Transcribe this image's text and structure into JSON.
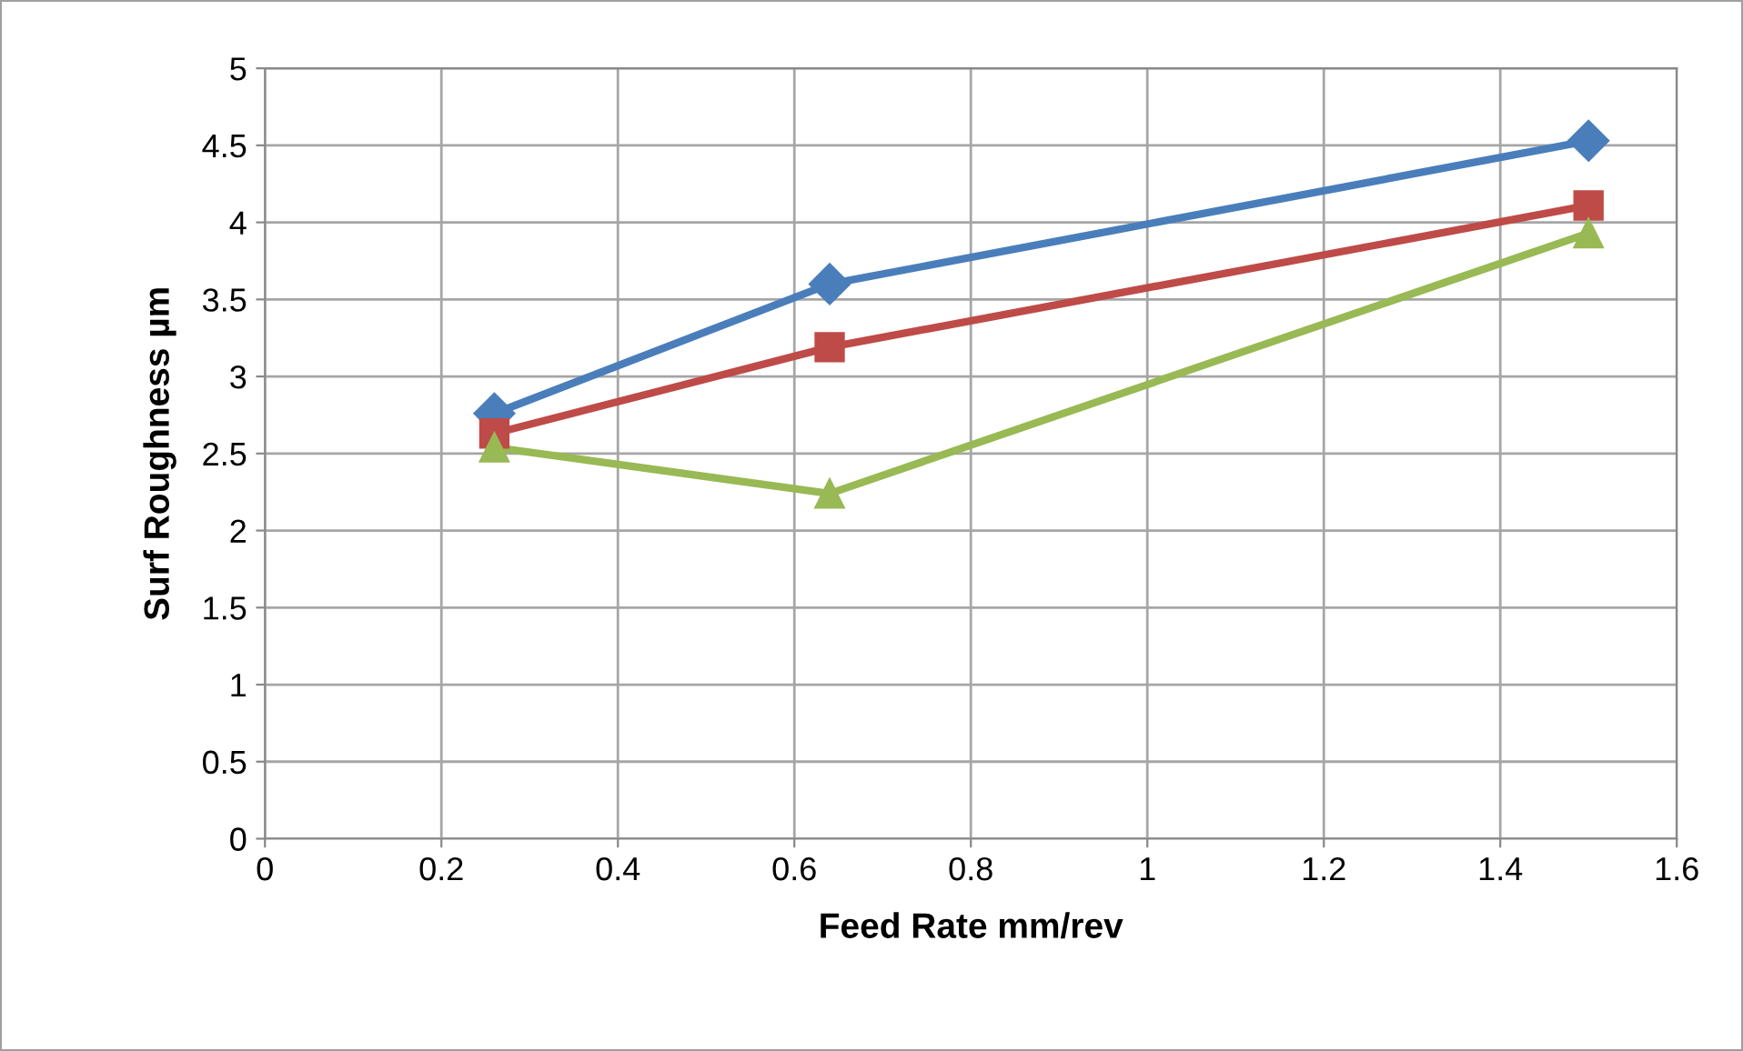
{
  "chart_data": {
    "type": "line",
    "xlabel": "Feed Rate mm/rev",
    "ylabel": "Surf Roughness µm",
    "x": [
      0.26,
      0.64,
      1.5
    ],
    "series": [
      {
        "color": "#4a7ebb",
        "values": [
          2.76,
          3.6,
          4.53
        ],
        "marker": "diamond"
      },
      {
        "color": "#be4b48",
        "values": [
          2.63,
          3.19,
          4.11
        ],
        "marker": "square"
      },
      {
        "color": "#98b954",
        "values": [
          2.54,
          2.24,
          3.93
        ],
        "marker": "triangle"
      }
    ],
    "xlim": [
      0,
      1.6
    ],
    "xticks": [
      0,
      0.2,
      0.4,
      0.6,
      0.8,
      1,
      1.2,
      1.4,
      1.6
    ],
    "ylim": [
      0,
      5
    ],
    "yticks": [
      0,
      0.5,
      1,
      1.5,
      2,
      2.5,
      3,
      3.5,
      4,
      4.5,
      5
    ],
    "grid": true,
    "line_style": "solid"
  }
}
